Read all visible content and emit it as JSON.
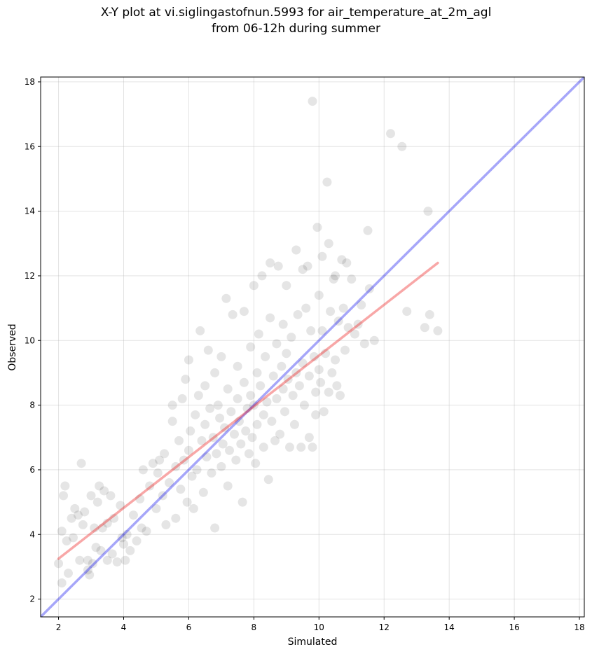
{
  "chart_data": {
    "type": "scatter",
    "title": "X-Y plot at vi.siglingastofnun.5993 for air_temperature_at_2m_agl",
    "subtitle": "from 06-12h during summer",
    "xlabel": "Simulated",
    "ylabel": "Observed",
    "xlim": [
      1.45,
      18.15
    ],
    "ylim": [
      1.45,
      18.15
    ],
    "xticks": [
      "2",
      "4",
      "6",
      "8",
      "10",
      "12",
      "14",
      "16",
      "18"
    ],
    "yticks": [
      "2",
      "4",
      "6",
      "8",
      "10",
      "12",
      "14",
      "16",
      "18"
    ],
    "grid": true,
    "point_color": "#000000",
    "identity_line": {
      "color": "#0000ee",
      "from": [
        1.45,
        1.45
      ],
      "to": [
        18.15,
        18.15
      ]
    },
    "fit_line": {
      "color": "#ee2222",
      "from": [
        2.0,
        3.25
      ],
      "to": [
        13.65,
        12.4
      ]
    },
    "points": [
      [
        2.0,
        3.1
      ],
      [
        2.1,
        2.5
      ],
      [
        2.1,
        4.1
      ],
      [
        2.15,
        5.2
      ],
      [
        2.2,
        5.5
      ],
      [
        2.25,
        3.8
      ],
      [
        2.3,
        2.8
      ],
      [
        2.4,
        4.5
      ],
      [
        2.45,
        3.9
      ],
      [
        2.5,
        4.8
      ],
      [
        2.6,
        4.6
      ],
      [
        2.65,
        3.2
      ],
      [
        2.7,
        6.2
      ],
      [
        2.75,
        4.3
      ],
      [
        2.8,
        4.7
      ],
      [
        2.9,
        3.2
      ],
      [
        2.9,
        2.9
      ],
      [
        2.95,
        2.75
      ],
      [
        3.0,
        5.2
      ],
      [
        3.05,
        3.1
      ],
      [
        3.1,
        4.2
      ],
      [
        3.15,
        3.6
      ],
      [
        3.2,
        5.0
      ],
      [
        3.25,
        5.5
      ],
      [
        3.3,
        3.5
      ],
      [
        3.35,
        4.2
      ],
      [
        3.4,
        5.35
      ],
      [
        3.5,
        3.2
      ],
      [
        3.5,
        4.35
      ],
      [
        3.6,
        5.2
      ],
      [
        3.65,
        3.4
      ],
      [
        3.7,
        4.5
      ],
      [
        3.8,
        3.15
      ],
      [
        3.9,
        4.9
      ],
      [
        3.95,
        3.9
      ],
      [
        4.0,
        3.7
      ],
      [
        4.05,
        3.2
      ],
      [
        4.1,
        4.0
      ],
      [
        4.2,
        3.5
      ],
      [
        4.3,
        4.6
      ],
      [
        4.4,
        3.8
      ],
      [
        4.5,
        5.1
      ],
      [
        4.55,
        4.2
      ],
      [
        4.6,
        6.0
      ],
      [
        4.7,
        4.1
      ],
      [
        4.8,
        5.5
      ],
      [
        4.9,
        6.2
      ],
      [
        5.0,
        4.8
      ],
      [
        5.05,
        5.9
      ],
      [
        5.1,
        6.3
      ],
      [
        5.2,
        5.2
      ],
      [
        5.25,
        6.5
      ],
      [
        5.3,
        4.3
      ],
      [
        5.4,
        5.6
      ],
      [
        5.5,
        7.5
      ],
      [
        5.5,
        8.0
      ],
      [
        5.6,
        6.1
      ],
      [
        5.6,
        4.5
      ],
      [
        5.7,
        6.9
      ],
      [
        5.75,
        5.4
      ],
      [
        5.8,
        8.2
      ],
      [
        5.85,
        6.3
      ],
      [
        5.9,
        8.8
      ],
      [
        5.95,
        5.0
      ],
      [
        6.0,
        9.4
      ],
      [
        6.0,
        6.6
      ],
      [
        6.05,
        7.2
      ],
      [
        6.1,
        5.8
      ],
      [
        6.15,
        4.8
      ],
      [
        6.2,
        7.7
      ],
      [
        6.25,
        6.0
      ],
      [
        6.3,
        8.3
      ],
      [
        6.35,
        10.3
      ],
      [
        6.4,
        6.9
      ],
      [
        6.45,
        5.3
      ],
      [
        6.5,
        7.4
      ],
      [
        6.5,
        8.6
      ],
      [
        6.55,
        6.4
      ],
      [
        6.6,
        9.7
      ],
      [
        6.65,
        7.9
      ],
      [
        6.7,
        5.9
      ],
      [
        6.75,
        7.0
      ],
      [
        6.8,
        9.0
      ],
      [
        6.8,
        4.2
      ],
      [
        6.85,
        6.5
      ],
      [
        6.9,
        8.0
      ],
      [
        6.95,
        7.6
      ],
      [
        7.0,
        6.1
      ],
      [
        7.0,
        9.5
      ],
      [
        7.05,
        6.8
      ],
      [
        7.1,
        7.3
      ],
      [
        7.15,
        11.3
      ],
      [
        7.2,
        8.5
      ],
      [
        7.2,
        5.5
      ],
      [
        7.25,
        6.6
      ],
      [
        7.3,
        7.8
      ],
      [
        7.35,
        10.8
      ],
      [
        7.4,
        7.1
      ],
      [
        7.45,
        6.3
      ],
      [
        7.5,
        8.2
      ],
      [
        7.5,
        9.2
      ],
      [
        7.55,
        7.5
      ],
      [
        7.6,
        6.8
      ],
      [
        7.65,
        5.0
      ],
      [
        7.7,
        8.7
      ],
      [
        7.7,
        10.9
      ],
      [
        7.75,
        7.2
      ],
      [
        7.8,
        7.9
      ],
      [
        7.85,
        6.5
      ],
      [
        7.9,
        9.8
      ],
      [
        7.9,
        8.3
      ],
      [
        7.95,
        7.0
      ],
      [
        8.0,
        11.7
      ],
      [
        8.0,
        8.0
      ],
      [
        8.05,
        6.2
      ],
      [
        8.1,
        9.0
      ],
      [
        8.1,
        7.4
      ],
      [
        8.15,
        10.2
      ],
      [
        8.2,
        8.6
      ],
      [
        8.25,
        12.0
      ],
      [
        8.3,
        7.7
      ],
      [
        8.3,
        6.7
      ],
      [
        8.35,
        9.5
      ],
      [
        8.4,
        8.1
      ],
      [
        8.45,
        5.7
      ],
      [
        8.5,
        12.4
      ],
      [
        8.5,
        10.7
      ],
      [
        8.55,
        7.5
      ],
      [
        8.6,
        8.9
      ],
      [
        8.65,
        6.9
      ],
      [
        8.7,
        9.9
      ],
      [
        8.7,
        8.2
      ],
      [
        8.75,
        12.3
      ],
      [
        8.8,
        7.1
      ],
      [
        8.85,
        9.2
      ],
      [
        8.9,
        10.5
      ],
      [
        8.9,
        8.5
      ],
      [
        8.95,
        7.8
      ],
      [
        9.0,
        11.7
      ],
      [
        9.0,
        9.6
      ],
      [
        9.05,
        8.8
      ],
      [
        9.1,
        6.7
      ],
      [
        9.15,
        10.1
      ],
      [
        9.2,
        8.3
      ],
      [
        9.25,
        7.4
      ],
      [
        9.3,
        12.8
      ],
      [
        9.3,
        9.0
      ],
      [
        9.35,
        10.8
      ],
      [
        9.4,
        8.6
      ],
      [
        9.45,
        6.7
      ],
      [
        9.5,
        12.2
      ],
      [
        9.5,
        9.3
      ],
      [
        9.55,
        8.0
      ],
      [
        9.6,
        11.0
      ],
      [
        9.65,
        12.3
      ],
      [
        9.7,
        8.9
      ],
      [
        9.7,
        7.0
      ],
      [
        9.75,
        10.3
      ],
      [
        9.8,
        17.4
      ],
      [
        9.8,
        6.7
      ],
      [
        9.85,
        9.5
      ],
      [
        9.9,
        8.4
      ],
      [
        9.9,
        7.7
      ],
      [
        9.95,
        13.5
      ],
      [
        10.0,
        11.4
      ],
      [
        10.0,
        9.1
      ],
      [
        10.05,
        8.7
      ],
      [
        10.1,
        12.6
      ],
      [
        10.1,
        10.3
      ],
      [
        10.15,
        7.8
      ],
      [
        10.2,
        9.6
      ],
      [
        10.25,
        14.9
      ],
      [
        10.3,
        13.0
      ],
      [
        10.3,
        8.4
      ],
      [
        10.35,
        10.9
      ],
      [
        10.4,
        9.0
      ],
      [
        10.45,
        11.9
      ],
      [
        10.5,
        12.0
      ],
      [
        10.5,
        9.4
      ],
      [
        10.55,
        8.6
      ],
      [
        10.6,
        10.6
      ],
      [
        10.65,
        8.3
      ],
      [
        10.7,
        12.5
      ],
      [
        10.75,
        11.0
      ],
      [
        10.8,
        9.7
      ],
      [
        10.85,
        12.4
      ],
      [
        10.9,
        10.4
      ],
      [
        11.0,
        11.9
      ],
      [
        11.1,
        10.2
      ],
      [
        11.2,
        10.5
      ],
      [
        11.3,
        11.1
      ],
      [
        11.4,
        9.9
      ],
      [
        11.5,
        13.4
      ],
      [
        11.55,
        11.6
      ],
      [
        11.7,
        10.0
      ],
      [
        12.2,
        16.4
      ],
      [
        12.55,
        16.0
      ],
      [
        12.7,
        10.9
      ],
      [
        13.25,
        10.4
      ],
      [
        13.35,
        14.0
      ],
      [
        13.4,
        10.8
      ],
      [
        13.65,
        10.3
      ]
    ]
  }
}
